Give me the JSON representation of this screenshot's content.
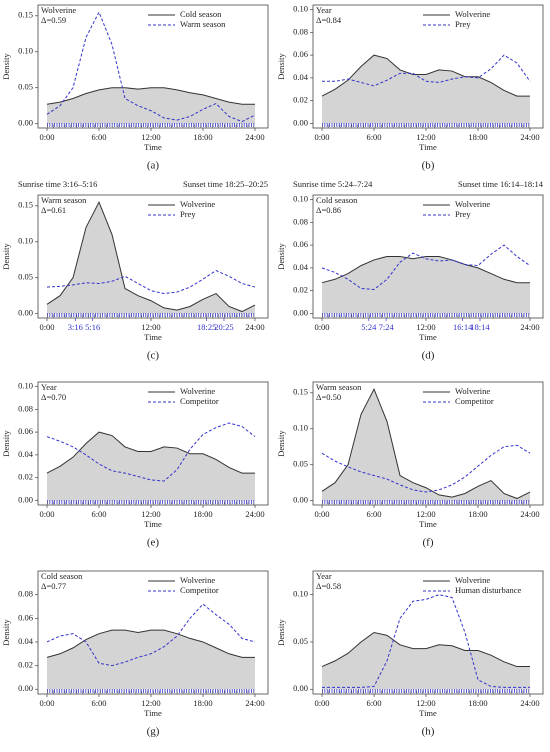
{
  "chart_data": [
    {
      "type": "line",
      "caption": "(a)",
      "xlabel": "Time",
      "ylabel": "Density",
      "annotations": [
        "Wolverine",
        "Δ=0.59"
      ],
      "x": [
        0,
        1.5,
        3,
        4.5,
        6,
        7.5,
        9,
        10.5,
        12,
        13.5,
        15,
        16.5,
        18,
        19.5,
        21,
        22.5,
        24
      ],
      "xlim": [
        -1.04,
        25.5
      ],
      "xticks": [
        {
          "value": 0,
          "label": "0:00"
        },
        {
          "value": 6,
          "label": "6:00"
        },
        {
          "value": 12,
          "label": "12:00"
        },
        {
          "value": 18,
          "label": "18:00"
        },
        {
          "value": 24,
          "label": "24:00"
        }
      ],
      "ylim": [
        -0.006,
        0.165
      ],
      "yticks": [
        {
          "value": 0,
          "label": "0.00"
        },
        0.05,
        {
          "value": 0.1,
          "label": "0.10"
        },
        0.15
      ],
      "series": [
        {
          "name": "Cold season",
          "color": "#333333",
          "style": "solid",
          "fill": true,
          "values": [
            0.027,
            0.03,
            0.035,
            0.042,
            0.047,
            0.05,
            0.05,
            0.048,
            0.05,
            0.05,
            0.047,
            0.043,
            0.04,
            0.035,
            0.03,
            0.027,
            0.027
          ]
        },
        {
          "name": "Warm season",
          "color": "#3333cc",
          "style": "dashed",
          "fill": false,
          "values": [
            0.013,
            0.025,
            0.05,
            0.12,
            0.155,
            0.11,
            0.035,
            0.025,
            0.018,
            0.008,
            0.005,
            0.01,
            0.02,
            0.028,
            0.01,
            0.003,
            0.012
          ]
        }
      ]
    },
    {
      "type": "line",
      "caption": "(b)",
      "xlabel": "Time",
      "ylabel": "Density",
      "annotations": [
        "Year",
        "Δ=0.84"
      ],
      "x": [
        0,
        1.5,
        3,
        4.5,
        6,
        7.5,
        9,
        10.5,
        12,
        13.5,
        15,
        16.5,
        18,
        19.5,
        21,
        22.5,
        24
      ],
      "xlim": [
        -1.04,
        25.5
      ],
      "xticks": [
        {
          "value": 0,
          "label": "0:00"
        },
        {
          "value": 6,
          "label": "6:00"
        },
        {
          "value": 12,
          "label": "12:00"
        },
        {
          "value": 18,
          "label": "18:00"
        },
        {
          "value": 24,
          "label": "24:00"
        }
      ],
      "ylim": [
        -0.004,
        0.104
      ],
      "yticks": [
        {
          "value": 0,
          "label": "0.00"
        },
        0.02,
        0.04,
        0.06,
        0.08,
        {
          "value": 0.1,
          "label": "0.10"
        }
      ],
      "series": [
        {
          "name": "Wolverine",
          "color": "#333333",
          "style": "solid",
          "fill": true,
          "values": [
            0.024,
            0.03,
            0.038,
            0.05,
            0.06,
            0.057,
            0.047,
            0.043,
            0.043,
            0.047,
            0.046,
            0.041,
            0.041,
            0.036,
            0.029,
            0.024,
            0.024
          ]
        },
        {
          "name": "Prey",
          "color": "#3333cc",
          "style": "dashed",
          "fill": false,
          "values": [
            0.037,
            0.037,
            0.039,
            0.036,
            0.033,
            0.038,
            0.044,
            0.044,
            0.037,
            0.036,
            0.039,
            0.041,
            0.04,
            0.048,
            0.06,
            0.053,
            0.037
          ]
        }
      ]
    },
    {
      "type": "line",
      "caption": "(c)",
      "xlabel": "Time",
      "ylabel": "Density",
      "annotations": [
        "Warm season",
        "Δ=0.61"
      ],
      "header": [
        "Sunrise time  3:16–5:16",
        "Sunset time  18:25–20:25"
      ],
      "sun_color": "#3333cc",
      "sun_ticks": [
        {
          "value": 3.27,
          "label": "3:16"
        },
        {
          "value": 5.27,
          "label": "5:16"
        },
        {
          "value": 18.42,
          "label": "18:25"
        },
        {
          "value": 20.42,
          "label": "20:25"
        }
      ],
      "x": [
        0,
        1.5,
        3,
        4.5,
        6,
        7.5,
        9,
        10.5,
        12,
        13.5,
        15,
        16.5,
        18,
        19.5,
        21,
        22.5,
        24
      ],
      "xlim": [
        -1.04,
        25.5
      ],
      "xticks": [
        {
          "value": 0,
          "label": "0:00"
        },
        {
          "value": 12,
          "label": "12:00"
        },
        {
          "value": 24,
          "label": "24:00"
        }
      ],
      "ylim": [
        -0.006,
        0.165
      ],
      "yticks": [
        {
          "value": 0,
          "label": "0.00"
        },
        0.05,
        {
          "value": 0.1,
          "label": "0.10"
        },
        0.15
      ],
      "series": [
        {
          "name": "Wolverine",
          "color": "#333333",
          "style": "solid",
          "fill": true,
          "values": [
            0.013,
            0.025,
            0.05,
            0.12,
            0.155,
            0.11,
            0.035,
            0.025,
            0.018,
            0.008,
            0.005,
            0.01,
            0.02,
            0.028,
            0.01,
            0.003,
            0.012
          ]
        },
        {
          "name": "Prey",
          "color": "#3333cc",
          "style": "dashed",
          "fill": false,
          "values": [
            0.037,
            0.038,
            0.04,
            0.043,
            0.042,
            0.045,
            0.052,
            0.042,
            0.032,
            0.028,
            0.03,
            0.037,
            0.048,
            0.06,
            0.052,
            0.042,
            0.037
          ]
        }
      ]
    },
    {
      "type": "line",
      "caption": "(d)",
      "xlabel": "Time",
      "ylabel": "Density",
      "annotations": [
        "Cold season",
        "Δ=0.86"
      ],
      "header": [
        "Sunrise time  5:24–7:24",
        "Sunset time  16:14–18:14"
      ],
      "sun_color": "#3333cc",
      "sun_ticks": [
        {
          "value": 5.4,
          "label": "5:24"
        },
        {
          "value": 7.4,
          "label": "7:24"
        },
        {
          "value": 16.23,
          "label": "16:14"
        },
        {
          "value": 18.23,
          "label": "18:14"
        }
      ],
      "x": [
        0,
        1.5,
        3,
        4.5,
        6,
        7.5,
        9,
        10.5,
        12,
        13.5,
        15,
        16.5,
        18,
        19.5,
        21,
        22.5,
        24
      ],
      "xlim": [
        -1.04,
        25.5
      ],
      "xticks": [
        {
          "value": 0,
          "label": "0:00"
        },
        {
          "value": 12,
          "label": "12:00"
        },
        {
          "value": 24,
          "label": "24:00"
        }
      ],
      "ylim": [
        -0.004,
        0.104
      ],
      "yticks": [
        {
          "value": 0,
          "label": "0.00"
        },
        0.02,
        0.04,
        0.06,
        0.08,
        {
          "value": 0.1,
          "label": "0.10"
        }
      ],
      "series": [
        {
          "name": "Wolverine",
          "color": "#333333",
          "style": "solid",
          "fill": true,
          "values": [
            0.027,
            0.03,
            0.035,
            0.042,
            0.047,
            0.05,
            0.05,
            0.048,
            0.05,
            0.05,
            0.047,
            0.043,
            0.04,
            0.035,
            0.03,
            0.027,
            0.027
          ]
        },
        {
          "name": "Prey",
          "color": "#3333cc",
          "style": "dashed",
          "fill": false,
          "values": [
            0.04,
            0.036,
            0.03,
            0.022,
            0.021,
            0.03,
            0.045,
            0.053,
            0.048,
            0.046,
            0.047,
            0.043,
            0.042,
            0.052,
            0.06,
            0.05,
            0.042
          ]
        }
      ]
    },
    {
      "type": "line",
      "caption": "(e)",
      "xlabel": "Time",
      "ylabel": "Density",
      "annotations": [
        "Year",
        "Δ=0.70"
      ],
      "x": [
        0,
        1.5,
        3,
        4.5,
        6,
        7.5,
        9,
        10.5,
        12,
        13.5,
        15,
        16.5,
        18,
        19.5,
        21,
        22.5,
        24
      ],
      "xlim": [
        -1.04,
        25.5
      ],
      "xticks": [
        {
          "value": 0,
          "label": "0:00"
        },
        {
          "value": 6,
          "label": "6:00"
        },
        {
          "value": 12,
          "label": "12:00"
        },
        {
          "value": 18,
          "label": "18:00"
        },
        {
          "value": 24,
          "label": "24:00"
        }
      ],
      "ylim": [
        -0.004,
        0.104
      ],
      "yticks": [
        {
          "value": 0,
          "label": "0.00"
        },
        0.02,
        0.04,
        0.06,
        0.08,
        {
          "value": 0.1,
          "label": "0.10"
        }
      ],
      "series": [
        {
          "name": "Wolverine",
          "color": "#333333",
          "style": "solid",
          "fill": true,
          "values": [
            0.024,
            0.03,
            0.038,
            0.05,
            0.06,
            0.057,
            0.047,
            0.043,
            0.043,
            0.047,
            0.046,
            0.041,
            0.041,
            0.036,
            0.029,
            0.024,
            0.024
          ]
        },
        {
          "name": "Competitor",
          "color": "#3333cc",
          "style": "dashed",
          "fill": false,
          "values": [
            0.056,
            0.052,
            0.047,
            0.04,
            0.032,
            0.026,
            0.024,
            0.021,
            0.018,
            0.017,
            0.027,
            0.045,
            0.058,
            0.064,
            0.068,
            0.065,
            0.056
          ]
        }
      ]
    },
    {
      "type": "line",
      "caption": "(f)",
      "xlabel": "Time",
      "ylabel": "Density",
      "annotations": [
        "Warm season",
        "Δ=0.50"
      ],
      "x": [
        0,
        1.5,
        3,
        4.5,
        6,
        7.5,
        9,
        10.5,
        12,
        13.5,
        15,
        16.5,
        18,
        19.5,
        21,
        22.5,
        24
      ],
      "xlim": [
        -1.04,
        25.5
      ],
      "xticks": [
        {
          "value": 0,
          "label": "0:00"
        },
        {
          "value": 6,
          "label": "6:00"
        },
        {
          "value": 12,
          "label": "12:00"
        },
        {
          "value": 18,
          "label": "18:00"
        },
        {
          "value": 24,
          "label": "24:00"
        }
      ],
      "ylim": [
        -0.006,
        0.165
      ],
      "yticks": [
        {
          "value": 0,
          "label": "0.00"
        },
        0.05,
        {
          "value": 0.1,
          "label": "0.10"
        },
        0.15
      ],
      "series": [
        {
          "name": "Wolverine",
          "color": "#333333",
          "style": "solid",
          "fill": true,
          "values": [
            0.013,
            0.025,
            0.05,
            0.12,
            0.155,
            0.11,
            0.035,
            0.025,
            0.018,
            0.008,
            0.005,
            0.01,
            0.02,
            0.028,
            0.01,
            0.003,
            0.012
          ]
        },
        {
          "name": "Competitor",
          "color": "#3333cc",
          "style": "dashed",
          "fill": false,
          "values": [
            0.066,
            0.055,
            0.047,
            0.04,
            0.035,
            0.03,
            0.022,
            0.015,
            0.012,
            0.015,
            0.022,
            0.033,
            0.048,
            0.063,
            0.075,
            0.077,
            0.066
          ]
        }
      ]
    },
    {
      "type": "line",
      "caption": "(g)",
      "xlabel": "Time",
      "ylabel": "Density",
      "annotations": [
        "Cold season",
        "Δ=0.77"
      ],
      "x": [
        0,
        1.5,
        3,
        4.5,
        6,
        7.5,
        9,
        10.5,
        12,
        13.5,
        15,
        16.5,
        18,
        19.5,
        21,
        22.5,
        24
      ],
      "xlim": [
        -1.04,
        25.5
      ],
      "xticks": [
        {
          "value": 0,
          "label": "0:00"
        },
        {
          "value": 6,
          "label": "6:00"
        },
        {
          "value": 12,
          "label": "12:00"
        },
        {
          "value": 18,
          "label": "18:00"
        },
        {
          "value": 24,
          "label": "24:00"
        }
      ],
      "ylim": [
        -0.004,
        0.1
      ],
      "yticks": [
        {
          "value": 0,
          "label": "0.00"
        },
        0.02,
        0.04,
        0.06,
        0.08
      ],
      "series": [
        {
          "name": "Wolverine",
          "color": "#333333",
          "style": "solid",
          "fill": true,
          "values": [
            0.027,
            0.03,
            0.035,
            0.042,
            0.047,
            0.05,
            0.05,
            0.048,
            0.05,
            0.05,
            0.047,
            0.043,
            0.04,
            0.035,
            0.03,
            0.027,
            0.027
          ]
        },
        {
          "name": "Competitor",
          "color": "#3333cc",
          "style": "dashed",
          "fill": false,
          "values": [
            0.04,
            0.045,
            0.047,
            0.04,
            0.022,
            0.02,
            0.023,
            0.027,
            0.03,
            0.036,
            0.045,
            0.06,
            0.072,
            0.063,
            0.055,
            0.043,
            0.04
          ]
        }
      ]
    },
    {
      "type": "line",
      "caption": "(h)",
      "xlabel": "Time",
      "ylabel": "Density",
      "annotations": [
        "Year",
        "Δ=0.58"
      ],
      "x": [
        0,
        1.5,
        3,
        4.5,
        6,
        7.5,
        9,
        10.5,
        12,
        13.5,
        15,
        16.5,
        18,
        19.5,
        21,
        22.5,
        24
      ],
      "xlim": [
        -1.04,
        25.5
      ],
      "xticks": [
        {
          "value": 0,
          "label": "0:00"
        },
        {
          "value": 6,
          "label": "6:00"
        },
        {
          "value": 12,
          "label": "12:00"
        },
        {
          "value": 18,
          "label": "18:00"
        },
        {
          "value": 24,
          "label": "24:00"
        }
      ],
      "ylim": [
        -0.005,
        0.125
      ],
      "yticks": [
        {
          "value": 0,
          "label": "0.00"
        },
        0.05,
        {
          "value": 0.1,
          "label": "0.10"
        }
      ],
      "series": [
        {
          "name": "Wolverine",
          "color": "#333333",
          "style": "solid",
          "fill": true,
          "values": [
            0.024,
            0.03,
            0.038,
            0.05,
            0.06,
            0.057,
            0.047,
            0.043,
            0.043,
            0.047,
            0.046,
            0.041,
            0.041,
            0.036,
            0.029,
            0.024,
            0.024
          ]
        },
        {
          "name": "Human disturbance",
          "color": "#3333cc",
          "style": "dashed",
          "fill": false,
          "values": [
            0.002,
            0.002,
            0.002,
            0.002,
            0.003,
            0.03,
            0.075,
            0.093,
            0.095,
            0.1,
            0.097,
            0.06,
            0.01,
            0.003,
            0.002,
            0.002,
            0.002
          ]
        }
      ]
    }
  ]
}
